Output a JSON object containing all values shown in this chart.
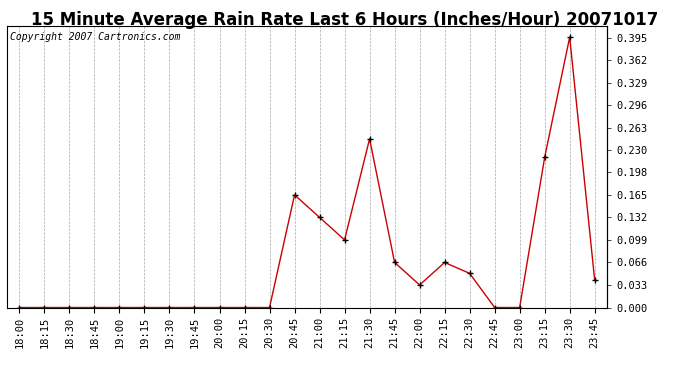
{
  "title": "15 Minute Average Rain Rate Last 6 Hours (Inches/Hour) 20071017",
  "copyright": "Copyright 2007 Cartronics.com",
  "x_labels": [
    "18:00",
    "18:15",
    "18:30",
    "18:45",
    "19:00",
    "19:15",
    "19:30",
    "19:45",
    "20:00",
    "20:15",
    "20:30",
    "20:45",
    "21:00",
    "21:15",
    "21:30",
    "21:45",
    "22:00",
    "22:15",
    "22:30",
    "22:45",
    "23:00",
    "23:15",
    "23:30",
    "23:45"
  ],
  "y_values": [
    0.0,
    0.0,
    0.0,
    0.0,
    0.0,
    0.0,
    0.0,
    0.0,
    0.0,
    0.0,
    0.0,
    0.165,
    0.132,
    0.099,
    0.247,
    0.066,
    0.033,
    0.066,
    0.05,
    0.0,
    0.0,
    0.22,
    0.396,
    0.04
  ],
  "line_color": "#cc0000",
  "marker": "+",
  "marker_size": 4,
  "marker_color": "#000000",
  "background_color": "#ffffff",
  "grid_color": "#aaaaaa",
  "y_ticks": [
    0.0,
    0.033,
    0.066,
    0.099,
    0.132,
    0.165,
    0.198,
    0.23,
    0.263,
    0.296,
    0.329,
    0.362,
    0.395
  ],
  "ylim": [
    0.0,
    0.412
  ],
  "title_fontsize": 12,
  "copyright_fontsize": 7,
  "tick_fontsize": 7.5
}
